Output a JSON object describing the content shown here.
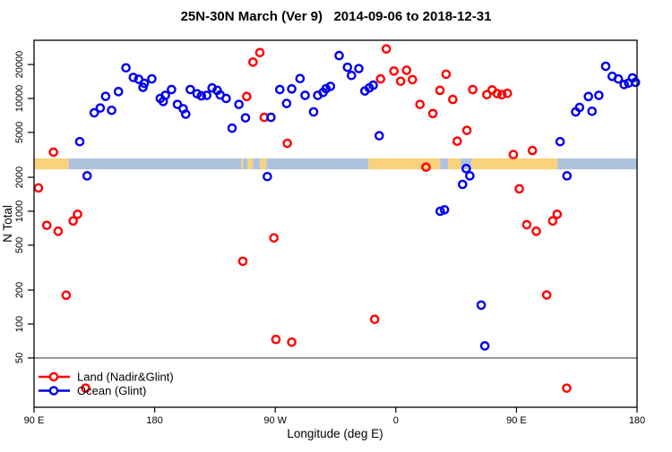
{
  "chart_data": {
    "type": "scatter",
    "title": "25N-30N March (Ver 9)   2014-09-06 to 2018-12-31",
    "x_axis": {
      "label": "Longitude (deg E)",
      "range_deg_east_extended": [
        90,
        540
      ],
      "ticks": [
        {
          "ext": 90,
          "label": "90 E"
        },
        {
          "ext": 180,
          "label": "180"
        },
        {
          "ext": 270,
          "label": "90 W"
        },
        {
          "ext": 360,
          "label": "0"
        },
        {
          "ext": 450,
          "label": "90 E"
        },
        {
          "ext": 540,
          "label": "180"
        }
      ]
    },
    "y_axis": {
      "label": "N Total",
      "scale": "log10",
      "range": [
        18,
        33000
      ],
      "ticks": [
        {
          "value": 50,
          "label": "50"
        },
        {
          "value": 100,
          "label": "100"
        },
        {
          "value": 200,
          "label": "200"
        },
        {
          "value": 500,
          "label": "500"
        },
        {
          "value": 1000,
          "label": "1000"
        },
        {
          "value": 2000,
          "label": "2000"
        },
        {
          "value": 5000,
          "label": "5000"
        },
        {
          "value": 10000,
          "label": "10000"
        },
        {
          "value": 20000,
          "label": "20000"
        }
      ]
    },
    "legend": {
      "position": "bottom-left",
      "items": [
        {
          "label": "Land (Nadir&Glint)",
          "color": "#FF0000"
        },
        {
          "label": "Ocean (Glint)",
          "color": "#0000EE"
        }
      ]
    },
    "reference_line": {
      "value": 50,
      "color": "#808080"
    },
    "land_ocean_band": {
      "value_range": [
        2350,
        2940
      ],
      "land_color": "#FAD27C",
      "ocean_color": "#AEC2DE",
      "segments": [
        [
          90,
          115.8,
          "land"
        ],
        [
          115.8,
          244.7,
          "ocean"
        ],
        [
          244.7,
          246.0,
          "land"
        ],
        [
          246.0,
          249.4,
          "ocean"
        ],
        [
          249.4,
          253.4,
          "land"
        ],
        [
          253.4,
          258.7,
          "ocean"
        ],
        [
          258.7,
          263.4,
          "land"
        ],
        [
          263.4,
          339.6,
          "ocean"
        ],
        [
          339.6,
          393.0,
          "land"
        ],
        [
          393.0,
          399.0,
          "ocean"
        ],
        [
          399.0,
          408.4,
          "land"
        ],
        [
          408.4,
          416.4,
          "ocean"
        ],
        [
          416.4,
          480.6,
          "land"
        ],
        [
          480.6,
          540.0,
          "ocean"
        ]
      ]
    },
    "series": [
      {
        "name": "Land (Nadir&Glint)",
        "color": "#FF0000",
        "points": [
          [
            93.3,
            1610
          ],
          [
            104.5,
            3340
          ],
          [
            99.5,
            750
          ],
          [
            108.0,
            665
          ],
          [
            119.2,
            820
          ],
          [
            122.5,
            940
          ],
          [
            114.0,
            180
          ],
          [
            128.5,
            27
          ],
          [
            253.4,
            21000
          ],
          [
            258.5,
            25500
          ],
          [
            248.7,
            10400
          ],
          [
            261.8,
            6800
          ],
          [
            279.0,
            4000
          ],
          [
            269.0,
            580
          ],
          [
            245.8,
            360
          ],
          [
            270.5,
            73
          ],
          [
            282.3,
            69
          ],
          [
            352.9,
            27500
          ],
          [
            358.6,
            17500
          ],
          [
            368.0,
            17800
          ],
          [
            363.6,
            14200
          ],
          [
            372.4,
            14700
          ],
          [
            348.6,
            14900
          ],
          [
            378.0,
            8850
          ],
          [
            387.6,
            7350
          ],
          [
            392.9,
            11800
          ],
          [
            402.5,
            9800
          ],
          [
            397.5,
            16400
          ],
          [
            405.8,
            4180
          ],
          [
            413.0,
            5210
          ],
          [
            417.4,
            12000
          ],
          [
            427.9,
            10800
          ],
          [
            431.9,
            11900
          ],
          [
            435.6,
            11050
          ],
          [
            439.2,
            10800
          ],
          [
            443.2,
            11100
          ],
          [
            447.7,
            3180
          ],
          [
            461.9,
            3450
          ],
          [
            452.1,
            1580
          ],
          [
            457.7,
            760
          ],
          [
            464.8,
            665
          ],
          [
            477.1,
            820
          ],
          [
            480.4,
            940
          ],
          [
            472.6,
            181
          ],
          [
            487.5,
            27
          ],
          [
            344.2,
            110
          ],
          [
            382.5,
            2460
          ]
        ]
      },
      {
        "name": "Ocean (Glint)",
        "color": "#0000EE",
        "points": [
          [
            124.1,
            4140
          ],
          [
            129.6,
            2060
          ],
          [
            134.9,
            7460
          ],
          [
            139.4,
            8230
          ],
          [
            143.4,
            10440
          ],
          [
            147.9,
            7850
          ],
          [
            153.0,
            11500
          ],
          [
            158.6,
            18700
          ],
          [
            164.1,
            15350
          ],
          [
            168.1,
            14800
          ],
          [
            172.3,
            13600
          ],
          [
            171.3,
            12550
          ],
          [
            177.9,
            14900
          ],
          [
            184.2,
            10000
          ],
          [
            188.0,
            10650
          ],
          [
            186.4,
            9400
          ],
          [
            192.6,
            12000
          ],
          [
            197.0,
            8860
          ],
          [
            201.3,
            8100
          ],
          [
            203.2,
            7250
          ],
          [
            206.6,
            12000
          ],
          [
            211.7,
            11000
          ],
          [
            214.9,
            10550
          ],
          [
            218.9,
            10650
          ],
          [
            222.9,
            12400
          ],
          [
            226.7,
            11800
          ],
          [
            228.9,
            10750
          ],
          [
            233.4,
            10000
          ],
          [
            237.8,
            5450
          ],
          [
            242.9,
            8860
          ],
          [
            247.8,
            6730
          ],
          [
            266.8,
            6800
          ],
          [
            278.5,
            9030
          ],
          [
            273.4,
            12000
          ],
          [
            282.3,
            12150
          ],
          [
            288.5,
            15000
          ],
          [
            292.3,
            10650
          ],
          [
            298.6,
            7600
          ],
          [
            301.7,
            10650
          ],
          [
            305.7,
            11300
          ],
          [
            307.9,
            12200
          ],
          [
            311.2,
            12800
          ],
          [
            317.7,
            24000
          ],
          [
            323.9,
            18900
          ],
          [
            326.9,
            16000
          ],
          [
            332.4,
            18400
          ],
          [
            336.9,
            11650
          ],
          [
            340.2,
            12400
          ],
          [
            343.1,
            13100
          ],
          [
            347.6,
            4670
          ],
          [
            264.1,
            2030
          ],
          [
            412.5,
            2390
          ],
          [
            415.2,
            2060
          ],
          [
            409.8,
            1730
          ],
          [
            393.1,
            1000
          ],
          [
            396.3,
            1030
          ],
          [
            423.7,
            147
          ],
          [
            426.4,
            64
          ],
          [
            482.6,
            4140
          ],
          [
            487.7,
            2060
          ],
          [
            497.1,
            8320
          ],
          [
            494.2,
            7600
          ],
          [
            506.4,
            7700
          ],
          [
            503.7,
            10400
          ],
          [
            511.5,
            10650
          ],
          [
            516.6,
            19300
          ],
          [
            521.5,
            15700
          ],
          [
            526.0,
            14900
          ],
          [
            530.4,
            13300
          ],
          [
            533.7,
            13700
          ],
          [
            536.6,
            15200
          ],
          [
            538.8,
            13900
          ]
        ]
      }
    ]
  }
}
